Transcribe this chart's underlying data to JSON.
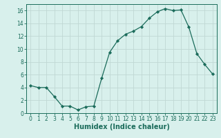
{
  "x": [
    0,
    1,
    2,
    3,
    4,
    5,
    6,
    7,
    8,
    9,
    10,
    11,
    12,
    13,
    14,
    15,
    16,
    17,
    18,
    19,
    20,
    21,
    22,
    23
  ],
  "y": [
    4.3,
    4.0,
    4.0,
    2.6,
    1.1,
    1.1,
    0.5,
    1.0,
    1.1,
    5.5,
    9.5,
    11.3,
    12.3,
    12.8,
    13.5,
    14.8,
    15.8,
    16.3,
    16.0,
    16.1,
    13.4,
    9.3,
    7.6,
    6.1
  ],
  "line_color": "#1a6b5a",
  "marker": "D",
  "marker_size": 2.2,
  "bg_color": "#d8f0ec",
  "grid_color": "#c0d8d4",
  "xlabel": "Humidex (Indice chaleur)",
  "xlabel_fontsize": 7.0,
  "ylim": [
    0,
    17
  ],
  "xlim": [
    -0.5,
    23.5
  ],
  "yticks": [
    0,
    2,
    4,
    6,
    8,
    10,
    12,
    14,
    16
  ],
  "xticks": [
    0,
    1,
    2,
    3,
    4,
    5,
    6,
    7,
    8,
    9,
    10,
    11,
    12,
    13,
    14,
    15,
    16,
    17,
    18,
    19,
    20,
    21,
    22,
    23
  ],
  "tick_fontsize": 5.5,
  "tick_color": "#1a6b5a",
  "axis_color": "#1a6b5a",
  "linewidth": 0.9
}
